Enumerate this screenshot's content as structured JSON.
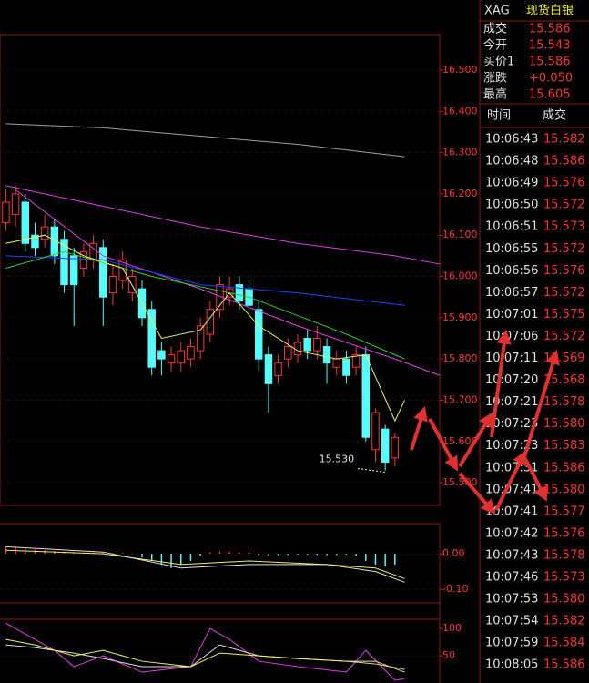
{
  "chart_data": [
    {
      "type": "candlestick",
      "categories": [
        null,
        null,
        null,
        null,
        null,
        null,
        null,
        null,
        null,
        null,
        null,
        null,
        null,
        null,
        null,
        null,
        null,
        null,
        null,
        null,
        null,
        null,
        null,
        null,
        null,
        null,
        null,
        null,
        null,
        null,
        null,
        null,
        null,
        null,
        null,
        null,
        null,
        null,
        null,
        null,
        null
      ],
      "open": [
        16.13,
        16.15,
        16.18,
        16.1,
        16.09,
        16.12,
        16.09,
        16.05,
        16.02,
        16.04,
        16.07,
        15.96,
        15.99,
        15.96,
        15.97,
        15.92,
        15.82,
        15.79,
        15.79,
        15.8,
        15.82,
        15.86,
        15.92,
        15.95,
        15.98,
        15.97,
        15.92,
        15.81,
        15.76,
        15.8,
        15.81,
        15.85,
        15.82,
        15.83,
        15.78,
        15.8,
        15.78,
        15.81,
        15.58,
        15.63,
        15.56
      ],
      "high": [
        16.21,
        16.22,
        16.2,
        16.13,
        16.15,
        16.14,
        16.11,
        16.07,
        16.08,
        16.1,
        16.09,
        16.03,
        16.06,
        16.02,
        15.99,
        15.94,
        15.84,
        15.83,
        15.84,
        15.85,
        15.9,
        15.94,
        16.0,
        16.0,
        16.0,
        15.99,
        15.94,
        15.83,
        15.81,
        15.85,
        15.86,
        15.87,
        15.88,
        15.85,
        15.82,
        15.82,
        15.83,
        15.83,
        15.68,
        15.64,
        15.62
      ],
      "low": [
        16.11,
        16.12,
        16.06,
        16.05,
        16.07,
        16.03,
        15.96,
        15.88,
        16.0,
        16.02,
        15.88,
        15.93,
        15.97,
        15.94,
        15.88,
        15.76,
        15.76,
        15.77,
        15.77,
        15.78,
        15.8,
        15.84,
        15.9,
        15.93,
        15.92,
        15.91,
        15.77,
        15.67,
        15.74,
        15.78,
        15.79,
        15.8,
        15.8,
        15.74,
        15.76,
        15.74,
        15.76,
        15.6,
        15.55,
        15.53,
        15.54
      ],
      "close": [
        16.18,
        16.2,
        16.08,
        16.07,
        16.12,
        16.05,
        15.98,
        15.98,
        16.06,
        16.08,
        15.95,
        16.0,
        16.04,
        16.0,
        15.9,
        15.78,
        15.8,
        15.81,
        15.82,
        15.83,
        15.88,
        15.92,
        15.98,
        15.97,
        15.94,
        15.93,
        15.8,
        15.74,
        15.79,
        15.83,
        15.84,
        15.82,
        15.85,
        15.79,
        15.8,
        15.76,
        15.81,
        15.61,
        15.67,
        15.55,
        15.61
      ],
      "up_color": "#ff3232",
      "down_color": "#54fcfc",
      "xlim": [
        -0.6,
        44.6
      ],
      "ylim": [
        15.445,
        16.586
      ],
      "yticks": [
        {
          "value": 16.5,
          "label": "16.500"
        },
        {
          "value": 16.4,
          "label": "16.400"
        },
        {
          "value": 16.3,
          "label": "16.300"
        },
        {
          "value": 16.2,
          "label": "16.200"
        },
        {
          "value": 16.1,
          "label": "16.100"
        },
        {
          "value": 16.0,
          "label": "16.000"
        },
        {
          "value": 15.9,
          "label": "15.900"
        },
        {
          "value": 15.8,
          "label": "15.800"
        },
        {
          "value": 15.7,
          "label": "15.700"
        },
        {
          "value": 15.6,
          "label": "15.600"
        },
        {
          "value": 15.5,
          "label": "15.500"
        }
      ],
      "annotation": {
        "label": "15.530",
        "value": 15.53
      },
      "lines": [
        {
          "color": "#a0a0a0",
          "x": [
            0,
            10,
            20,
            30,
            41
          ],
          "values": [
            16.37,
            16.36,
            16.34,
            16.32,
            16.29
          ]
        },
        {
          "color": "#e040e0",
          "x": [
            0,
            10,
            20,
            30,
            40,
            44.6
          ],
          "values": [
            16.22,
            16.17,
            16.12,
            16.08,
            16.05,
            16.03
          ]
        },
        {
          "color": "#e040e0",
          "x": [
            1,
            10,
            20,
            30,
            40,
            44.6
          ],
          "values": [
            16.21,
            16.05,
            15.97,
            15.88,
            15.8,
            15.76
          ]
        },
        {
          "color": "#2040ff",
          "x": [
            0,
            10,
            20,
            30,
            41
          ],
          "values": [
            16.05,
            16.04,
            15.98,
            15.96,
            15.93
          ]
        },
        {
          "color": "#30d030",
          "x": [
            0,
            6,
            15,
            25,
            35,
            41
          ],
          "values": [
            16.02,
            16.06,
            16.0,
            15.95,
            15.86,
            15.8
          ]
        },
        {
          "color": "#f0f060",
          "x": [
            0,
            4,
            8,
            12,
            16,
            20,
            23,
            26,
            30,
            34,
            37,
            40,
            41
          ],
          "values": [
            16.08,
            16.1,
            16.05,
            16.02,
            15.85,
            15.87,
            15.96,
            15.88,
            15.82,
            15.8,
            15.81,
            15.65,
            15.7
          ]
        }
      ]
    },
    {
      "type": "bar",
      "categories": [
        null,
        null,
        null,
        null,
        null,
        null,
        null,
        null,
        null,
        null,
        null,
        null,
        null,
        null,
        null,
        null,
        null,
        null,
        null,
        null,
        null,
        null,
        null,
        null,
        null,
        null,
        null,
        null,
        null,
        null,
        null,
        null,
        null,
        null,
        null,
        null,
        null,
        null,
        null,
        null,
        null
      ],
      "values": [
        0.02,
        0.018,
        0.016,
        0.012,
        0.01,
        0.008,
        0.006,
        0.005,
        0.004,
        0.004,
        0.003,
        0.002,
        0.002,
        0.001,
        -0.01,
        -0.02,
        -0.03,
        -0.04,
        -0.03,
        -0.02,
        -0.005,
        0.004,
        0.006,
        0.005,
        0.004,
        0.003,
        -0.003,
        -0.005,
        -0.004,
        -0.003,
        -0.002,
        -0.002,
        -0.003,
        -0.004,
        -0.003,
        -0.002,
        -0.005,
        -0.02,
        -0.03,
        -0.035,
        -0.03
      ],
      "up_color": "#ff3232",
      "down_color": "#54fcfc",
      "xlim": [
        -0.6,
        44.6
      ],
      "ylim": [
        -0.133,
        0.085
      ],
      "yticks": [
        {
          "value": 0,
          "label": "0.00"
        },
        {
          "value": -0.1,
          "label": "-0.10"
        }
      ],
      "lines": [
        {
          "color": "#f0f060",
          "x": [
            0,
            10,
            18,
            25,
            33,
            38,
            41
          ],
          "values": [
            0.01,
            0.0,
            -0.03,
            -0.02,
            -0.03,
            -0.04,
            -0.07
          ]
        },
        {
          "color": "#e0e0e0",
          "x": [
            0,
            10,
            18,
            25,
            33,
            38,
            41
          ],
          "values": [
            0.02,
            0.005,
            -0.04,
            -0.03,
            -0.03,
            -0.05,
            -0.08
          ]
        }
      ]
    },
    {
      "type": "line",
      "xlim": [
        -0.6,
        44.6
      ],
      "ylim": [
        0,
        117
      ],
      "yticks": [
        100,
        50
      ],
      "lines": [
        {
          "color": "#e040e0",
          "x": [
            0,
            2,
            5,
            7,
            10,
            14,
            19,
            21,
            23,
            26,
            30,
            35,
            37,
            40,
            41
          ],
          "values": [
            110,
            90,
            60,
            30,
            50,
            20,
            30,
            100,
            80,
            40,
            30,
            20,
            60,
            5,
            8
          ]
        },
        {
          "color": "#e0e0e0",
          "x": [
            0,
            3,
            7,
            10,
            14,
            19,
            22,
            26,
            30,
            35,
            38,
            41
          ],
          "values": [
            70,
            65,
            55,
            45,
            30,
            30,
            70,
            50,
            45,
            40,
            40,
            20
          ]
        },
        {
          "color": "#f0f060",
          "x": [
            0,
            3,
            7,
            10,
            14,
            19,
            22,
            26,
            30,
            35,
            38,
            41
          ],
          "values": [
            80,
            70,
            50,
            60,
            40,
            30,
            55,
            50,
            45,
            40,
            35,
            25
          ]
        }
      ]
    }
  ],
  "quote": {
    "symbol": "XAG",
    "name": "现货白银",
    "rows": [
      [
        "成交",
        "15.586"
      ],
      [
        "今开",
        "15.543"
      ],
      [
        "买价1",
        "15.586"
      ],
      [
        "涨跌",
        "+0.050"
      ],
      [
        "最高",
        "15.605"
      ]
    ]
  },
  "trades": {
    "header": [
      "时间",
      "成交"
    ],
    "rows": [
      [
        "10:06:43",
        "15.582"
      ],
      [
        "10:06:48",
        "15.586"
      ],
      [
        "10:06:49",
        "15.576"
      ],
      [
        "10:06:50",
        "15.572"
      ],
      [
        "10:06:51",
        "15.573"
      ],
      [
        "10:06:55",
        "15.572"
      ],
      [
        "10:06:56",
        "15.576"
      ],
      [
        "10:06:57",
        "15.572"
      ],
      [
        "10:07:01",
        "15.575"
      ],
      [
        "10:07:06",
        "15.572"
      ],
      [
        "10:07:11",
        "15.569"
      ],
      [
        "10:07:20",
        "15.568"
      ],
      [
        "10:07:21",
        "15.578"
      ],
      [
        "10:07:23",
        "15.580"
      ],
      [
        "10:07:23",
        "15.583"
      ],
      [
        "10:07:31",
        "15.586"
      ],
      [
        "10:07:41",
        "15.580"
      ],
      [
        "10:07:41",
        "15.577"
      ],
      [
        "10:07:42",
        "15.576"
      ],
      [
        "10:07:43",
        "15.578"
      ],
      [
        "10:07:46",
        "15.573"
      ],
      [
        "10:07:53",
        "15.580"
      ],
      [
        "10:07:54",
        "15.582"
      ],
      [
        "10:07:59",
        "15.584"
      ],
      [
        "10:08:05",
        "15.586"
      ]
    ]
  }
}
